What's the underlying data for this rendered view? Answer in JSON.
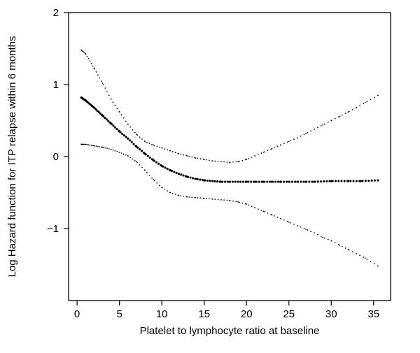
{
  "chart_data": {
    "type": "scatter",
    "title": "",
    "xlabel": "Platelet to lymphocyte ratio at baseline",
    "ylabel": "Log Hazard function for ITP relapse within 6 months",
    "xlim": [
      -1,
      37
    ],
    "ylim": [
      -2,
      2
    ],
    "x_ticks": [
      0,
      5,
      10,
      15,
      20,
      25,
      30,
      35
    ],
    "x_tick_labels": [
      "0",
      "5",
      "10",
      "15",
      "20",
      "25",
      "30",
      "35"
    ],
    "y_ticks": [
      -1,
      0,
      1,
      2
    ],
    "y_tick_labels": [
      "−1",
      "0",
      "1",
      "2"
    ],
    "grid": false,
    "legend": "none",
    "color": "#000000",
    "series": [
      {
        "role": "upper-ci",
        "style": "dotted",
        "x": [
          0.5,
          1,
          2,
          3,
          4,
          5,
          6,
          7,
          8,
          9,
          10,
          11,
          12,
          13,
          14,
          15,
          16,
          17,
          18,
          19,
          20,
          21,
          22,
          23,
          24,
          25,
          26,
          27,
          28,
          29,
          30,
          31,
          32,
          33,
          34,
          35.5
        ],
        "y": [
          1.48,
          1.43,
          1.23,
          1.02,
          0.8,
          0.62,
          0.45,
          0.31,
          0.21,
          0.16,
          0.12,
          0.08,
          0.04,
          0.01,
          -0.02,
          -0.04,
          -0.06,
          -0.07,
          -0.08,
          -0.07,
          -0.04,
          0.01,
          0.06,
          0.11,
          0.16,
          0.21,
          0.26,
          0.32,
          0.38,
          0.44,
          0.5,
          0.56,
          0.62,
          0.68,
          0.75,
          0.85
        ]
      },
      {
        "role": "estimate",
        "style": "dotted-bold",
        "x": [
          0.5,
          1,
          2,
          3,
          4,
          5,
          6,
          7,
          8,
          9,
          10,
          11,
          12,
          13,
          14,
          15,
          16,
          17,
          18,
          19,
          20,
          21,
          22,
          23,
          24,
          25,
          26,
          27,
          28,
          30,
          32,
          33.5,
          35.5
        ],
        "y": [
          0.82,
          0.78,
          0.68,
          0.57,
          0.46,
          0.35,
          0.25,
          0.14,
          0.04,
          -0.05,
          -0.13,
          -0.19,
          -0.24,
          -0.28,
          -0.31,
          -0.33,
          -0.34,
          -0.35,
          -0.35,
          -0.35,
          -0.35,
          -0.35,
          -0.35,
          -0.35,
          -0.35,
          -0.35,
          -0.35,
          -0.35,
          -0.35,
          -0.34,
          -0.34,
          -0.34,
          -0.33
        ]
      },
      {
        "role": "lower-ci",
        "style": "dotted",
        "x": [
          0.5,
          1,
          2,
          3,
          4,
          5,
          6,
          7,
          8,
          9,
          10,
          11,
          12,
          13,
          14,
          15,
          16,
          17,
          18,
          19,
          20,
          21,
          22,
          23,
          24,
          25,
          26,
          27,
          28,
          29,
          30,
          31,
          32,
          33,
          34,
          35.5
        ],
        "y": [
          0.17,
          0.17,
          0.15,
          0.13,
          0.1,
          0.06,
          0.01,
          -0.07,
          -0.19,
          -0.32,
          -0.43,
          -0.5,
          -0.54,
          -0.56,
          -0.57,
          -0.58,
          -0.59,
          -0.6,
          -0.61,
          -0.63,
          -0.66,
          -0.71,
          -0.76,
          -0.81,
          -0.86,
          -0.91,
          -0.96,
          -1.01,
          -1.06,
          -1.12,
          -1.17,
          -1.23,
          -1.29,
          -1.35,
          -1.41,
          -1.52
        ]
      }
    ]
  }
}
